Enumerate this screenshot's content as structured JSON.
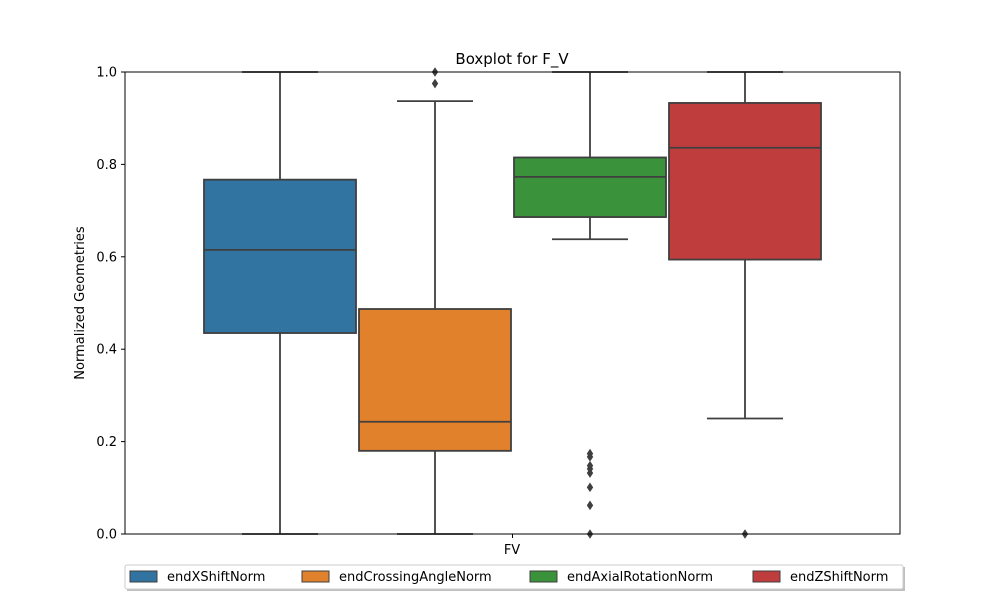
{
  "chart_data": {
    "type": "boxplot",
    "title": "Boxplot for F_V",
    "xlabel": "",
    "ylabel": "Normalized Geometries",
    "categories": [
      "FV"
    ],
    "ylim": [
      0,
      1
    ],
    "yticks": [
      "0.0",
      "0.2",
      "0.4",
      "0.6",
      "0.8",
      "1.0"
    ],
    "ytick_values": [
      0,
      0.2,
      0.4,
      0.6,
      0.8,
      1.0
    ],
    "grid": false,
    "legend_position": "bottom-center",
    "series": [
      {
        "name": "endXShiftNorm",
        "color": "#3274a1",
        "whisker_low": 0.0,
        "q1": 0.435,
        "median": 0.615,
        "q3": 0.767,
        "whisker_high": 1.0,
        "outliers": []
      },
      {
        "name": "endCrossingAngleNorm",
        "color": "#e1812c",
        "whisker_low": 0.0,
        "q1": 0.18,
        "median": 0.243,
        "q3": 0.487,
        "whisker_high": 0.937,
        "outliers": [
          0.975,
          1.0
        ]
      },
      {
        "name": "endAxialRotationNorm",
        "color": "#3a923a",
        "whisker_low": 0.638,
        "q1": 0.686,
        "median": 0.773,
        "q3": 0.815,
        "whisker_high": 1.0,
        "outliers": [
          0.0,
          0.062,
          0.101,
          0.132,
          0.141,
          0.148,
          0.167,
          0.174
        ]
      },
      {
        "name": "endZShiftNorm",
        "color": "#c03d3e",
        "whisker_low": 0.25,
        "q1": 0.594,
        "median": 0.836,
        "q3": 0.933,
        "whisker_high": 1.0,
        "outliers": [
          0.0
        ]
      }
    ]
  }
}
